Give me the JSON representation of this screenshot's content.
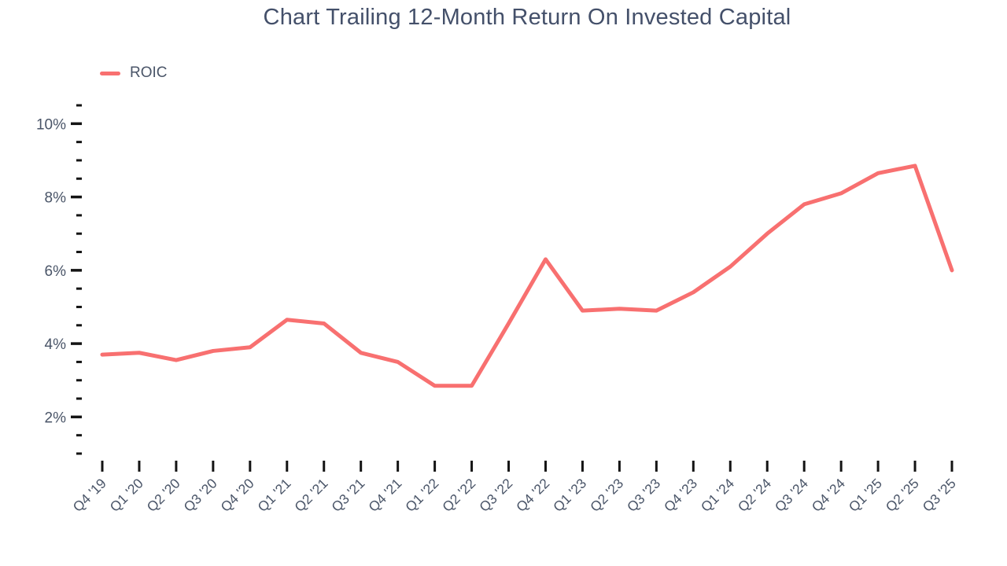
{
  "chart": {
    "title": "Chart Trailing 12-Month Return On Invested Capital",
    "legend": [
      {
        "label": "ROIC",
        "color": "#f87070"
      }
    ]
  },
  "chart_data": {
    "type": "line",
    "title": "Chart Trailing 12-Month Return On Invested Capital",
    "categories": [
      "Q4 '19",
      "Q1 '20",
      "Q2 '20",
      "Q3 '20",
      "Q4 '20",
      "Q1 '21",
      "Q2 '21",
      "Q3 '21",
      "Q4 '21",
      "Q1 '22",
      "Q2 '22",
      "Q3 '22",
      "Q4 '22",
      "Q1 '23",
      "Q2 '23",
      "Q3 '23",
      "Q4 '23",
      "Q1 '24",
      "Q2 '24",
      "Q3 '24",
      "Q4 '24",
      "Q1 '25",
      "Q2 '25",
      "Q3 '25"
    ],
    "series": [
      {
        "name": "ROIC",
        "color": "#f87070",
        "values": [
          3.7,
          3.75,
          3.55,
          3.8,
          3.9,
          4.65,
          4.55,
          3.75,
          3.5,
          2.85,
          2.85,
          4.55,
          6.3,
          4.9,
          4.95,
          4.9,
          5.4,
          6.1,
          7.0,
          7.8,
          8.1,
          8.65,
          8.85,
          6.0
        ]
      }
    ],
    "xlabel": "",
    "ylabel": "",
    "y_unit": "%",
    "ylim": [
      1.0,
      10.5
    ],
    "y_major_ticks": [
      2,
      4,
      6,
      8,
      10
    ],
    "y_minor_step": 0.5,
    "grid": false,
    "legend_position": "top-left",
    "x_tick_rotation": -45
  },
  "colors": {
    "line": "#f87070",
    "title_text": "#44506a",
    "axis_text": "#4a5568",
    "tick_mark": "#141414",
    "background": "#ffffff"
  }
}
